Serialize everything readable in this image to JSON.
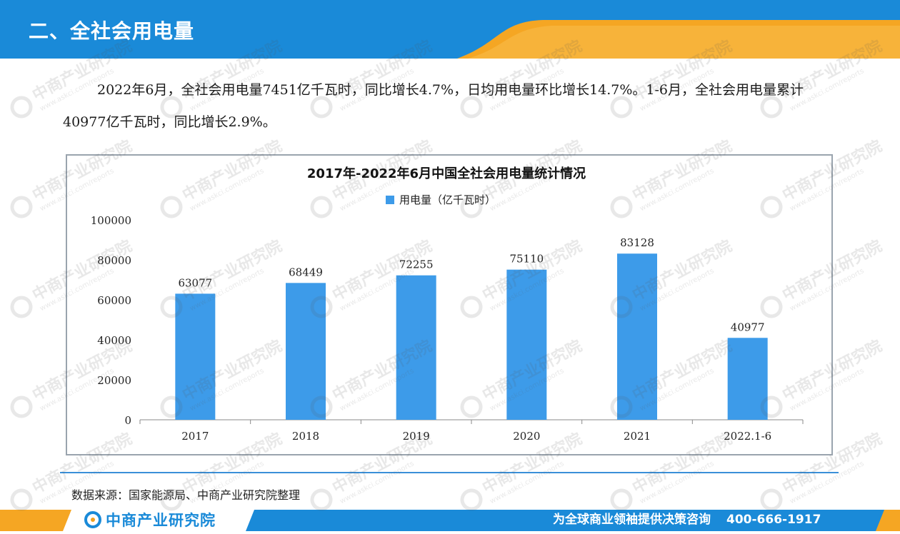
{
  "header": {
    "title": "二、全社会用电量"
  },
  "intro": {
    "text": "2022年6月，全社会用电量7451亿千瓦时，同比增长4.7%，日均用电量环比增长14.7%。1-6月，全社会用电量累计40977亿千瓦时，同比增长2.9%。"
  },
  "chart_data": {
    "type": "bar",
    "title": "2017年-2022年6月中国全社会用电量统计情况",
    "categories": [
      "2017",
      "2018",
      "2019",
      "2020",
      "2021",
      "2022.1-6"
    ],
    "series": [
      {
        "name": "用电量（亿千瓦时）",
        "values": [
          63077,
          68449,
          72255,
          75110,
          83128,
          40977
        ]
      }
    ],
    "ylim": [
      0,
      100000
    ],
    "yticks": [
      0,
      20000,
      40000,
      60000,
      80000,
      100000
    ],
    "xlabel": "",
    "ylabel": "",
    "legend": "top-center",
    "grid": false,
    "bar_color": "#3d9be9"
  },
  "source": {
    "text": "数据来源：国家能源局、中商产业研究院整理"
  },
  "footer": {
    "brand": "中商产业研究院",
    "slogan": "为全球商业领袖提供决策咨询",
    "phone": "400-666-1917"
  },
  "watermark": {
    "brand": "中商产业研究院",
    "url": "www.askci.com/reports"
  },
  "colors": {
    "header_blue": "#1a8ad8",
    "accent_orange": "#f5a623",
    "bar_blue": "#3d9be9"
  }
}
